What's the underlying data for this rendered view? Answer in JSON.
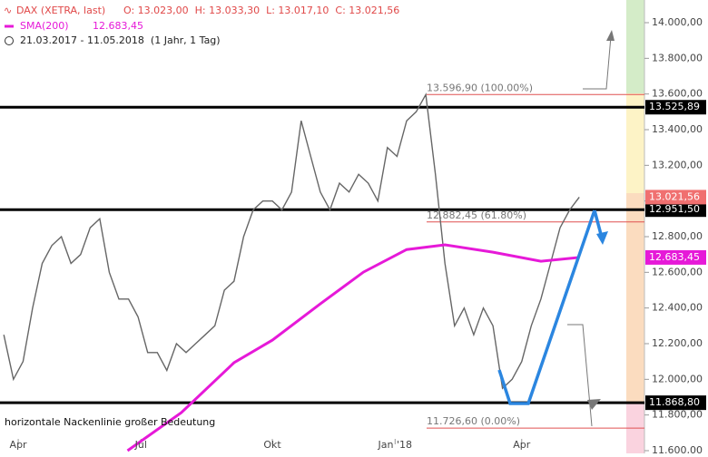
{
  "chart_data": {
    "type": "line",
    "header": {
      "ohlc": "O: 13.023,00  H: 13.033,30  L: 13.017,10  C: 13.021,56",
      "range": "21.03.2017 - 11.05.2018  (1 Jahr, 1 Tag)"
    },
    "ylim": [
      11600,
      14000
    ],
    "yticks": [
      {
        "value": 11600,
        "label": "11.600,00"
      },
      {
        "value": 11800,
        "label": "11.800,00"
      },
      {
        "value": 12000,
        "label": "12.000,00"
      },
      {
        "value": 12200,
        "label": "12.200,00"
      },
      {
        "value": 12400,
        "label": "12.400,00"
      },
      {
        "value": 12600,
        "label": "12.600,00"
      },
      {
        "value": 12800,
        "label": "12.800,00"
      },
      {
        "value": 13000,
        "label": "13.000,00"
      },
      {
        "value": 13200,
        "label": "13.200,00"
      },
      {
        "value": 13400,
        "label": "13.400,00"
      },
      {
        "value": 13600,
        "label": "13.600,00"
      },
      {
        "value": 13800,
        "label": "13.800,00"
      },
      {
        "value": 14000,
        "label": "14.000,00"
      }
    ],
    "xlim": [
      -0.4,
      66.8
    ],
    "xticks": [
      {
        "value": 1.5,
        "label": "Apr"
      },
      {
        "value": 14.3,
        "label": "Jul"
      },
      {
        "value": 28,
        "label": "Okt"
      },
      {
        "value": 40.8,
        "label": "Jan '18"
      },
      {
        "value": 54,
        "label": "Apr"
      }
    ],
    "series": [
      {
        "name": "DAX (XETRA, last)",
        "color": "#666666",
        "x": [
          0,
          1,
          2,
          3,
          4,
          5,
          6,
          7,
          8,
          9,
          10,
          11,
          12,
          13,
          14,
          15,
          16,
          17,
          18,
          19,
          20,
          21,
          22,
          23,
          24,
          25,
          26,
          27,
          28,
          29,
          30,
          31,
          32,
          33,
          34,
          35,
          36,
          37,
          38,
          39,
          40,
          41,
          42,
          43,
          44,
          45,
          46,
          47,
          48,
          49,
          50,
          51,
          52,
          53,
          54,
          55,
          56,
          57,
          58,
          59,
          60
        ],
        "values": [
          12250,
          12000,
          12100,
          12400,
          12650,
          12750,
          12800,
          12650,
          12700,
          12850,
          12900,
          12600,
          12450,
          12450,
          12350,
          12150,
          12150,
          12050,
          12200,
          12150,
          12200,
          12250,
          12300,
          12500,
          12550,
          12800,
          12950,
          13000,
          13000,
          12950,
          13050,
          13450,
          13250,
          13050,
          12950,
          13100,
          13050,
          13150,
          13100,
          13000,
          13300,
          13250,
          13450,
          13500,
          13596.9,
          13150,
          12650,
          12300,
          12400,
          12250,
          12400,
          12300,
          11950,
          12000,
          12100,
          12300,
          12450,
          12650,
          12850,
          12950,
          13021.56
        ],
        "last_label": {
          "value": 13021.56,
          "label": "13.021,56"
        }
      },
      {
        "name": "SMA(200)",
        "legend_value": "12.683,45",
        "color": "#e619d8",
        "x": [
          12.9,
          18.5,
          24,
          28,
          33,
          37.5,
          42,
          46,
          51,
          56,
          60
        ],
        "values": [
          11600,
          11813,
          12093,
          12220,
          12423,
          12601,
          12728,
          12754,
          12713,
          12662,
          12683.45
        ],
        "last_label": {
          "value": 12683.45,
          "label": "12.683,45"
        }
      }
    ],
    "levels": [
      {
        "value": 13525.89,
        "label": "13.525,89"
      },
      {
        "value": 12951.5,
        "label": "12.951,50"
      },
      {
        "value": 11868.8,
        "label": "11.868,80"
      }
    ],
    "fib": [
      {
        "value": 13596.9,
        "label": "13.596,90 (100.00%)"
      },
      {
        "value": 12882.45,
        "label": "12.882,45 (61.80%)"
      },
      {
        "value": 11726.6,
        "label": "11.726,60 (0.00%)"
      }
    ],
    "annotation": "horizontale Nackenlinie großer Bedeutung"
  }
}
